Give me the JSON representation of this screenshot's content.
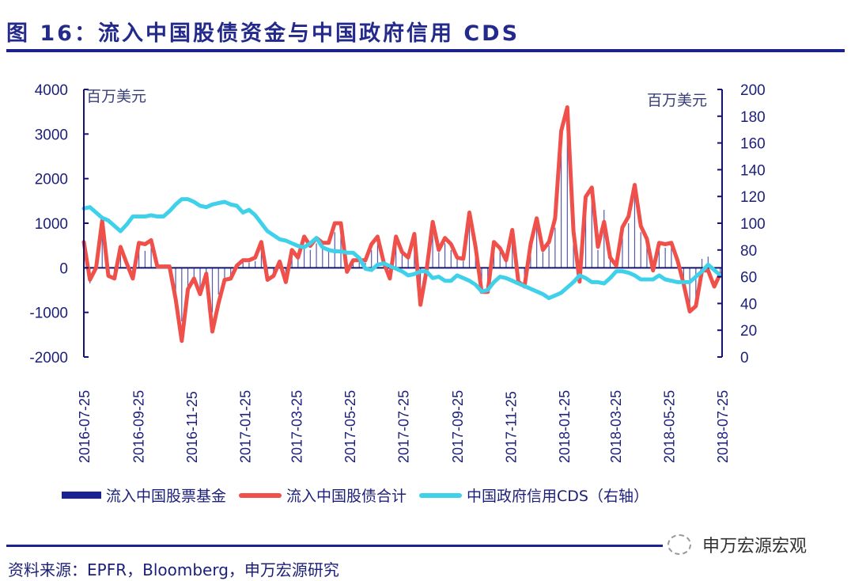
{
  "header": {
    "title": "图 16：流入中国股债资金与中国政府信用 CDS"
  },
  "footer": {
    "source": "资料来源：EPFR，Bloomberg，申万宏源研究",
    "watermark": "申万宏源宏观"
  },
  "colors": {
    "equity_bar": "#1c2290",
    "total_line": "#f0504a",
    "cds_line": "#3fd0ea",
    "axis": "#141470"
  },
  "chart_data": {
    "type": "bar+line",
    "left_axis": {
      "label": "百万美元",
      "range": [
        -2000,
        4000
      ],
      "ticks": [
        -2000,
        -1000,
        0,
        1000,
        2000,
        3000,
        4000
      ]
    },
    "right_axis": {
      "label": "百万美元",
      "range": [
        0,
        200
      ],
      "ticks": [
        0,
        20,
        40,
        60,
        80,
        100,
        120,
        140,
        160,
        180,
        200
      ]
    },
    "x_tick_labels": [
      "2016-07-25",
      "2016-09-25",
      "2016-11-25",
      "2017-01-25",
      "2017-03-25",
      "2017-05-25",
      "2017-07-25",
      "2017-09-25",
      "2017-11-25",
      "2018-01-25",
      "2018-03-25",
      "2018-05-25",
      "2018-07-25"
    ],
    "legend_position": "bottom",
    "grid": false,
    "x": [
      "2016-07-25",
      "2016-08-01",
      "2016-08-08",
      "2016-08-15",
      "2016-08-22",
      "2016-08-29",
      "2016-09-05",
      "2016-09-12",
      "2016-09-19",
      "2016-09-26",
      "2016-10-03",
      "2016-10-10",
      "2016-10-17",
      "2016-10-24",
      "2016-10-31",
      "2016-11-07",
      "2016-11-14",
      "2016-11-21",
      "2016-11-28",
      "2016-12-05",
      "2016-12-12",
      "2016-12-19",
      "2016-12-26",
      "2017-01-02",
      "2017-01-09",
      "2017-01-16",
      "2017-01-23",
      "2017-01-30",
      "2017-02-06",
      "2017-02-13",
      "2017-02-20",
      "2017-02-27",
      "2017-03-06",
      "2017-03-13",
      "2017-03-20",
      "2017-03-27",
      "2017-04-03",
      "2017-04-10",
      "2017-04-17",
      "2017-04-24",
      "2017-05-01",
      "2017-05-08",
      "2017-05-15",
      "2017-05-22",
      "2017-05-29",
      "2017-06-05",
      "2017-06-12",
      "2017-06-19",
      "2017-06-26",
      "2017-07-03",
      "2017-07-10",
      "2017-07-17",
      "2017-07-24",
      "2017-07-31",
      "2017-08-07",
      "2017-08-14",
      "2017-08-21",
      "2017-08-28",
      "2017-09-04",
      "2017-09-11",
      "2017-09-18",
      "2017-09-25",
      "2017-10-02",
      "2017-10-09",
      "2017-10-16",
      "2017-10-23",
      "2017-10-30",
      "2017-11-06",
      "2017-11-13",
      "2017-11-20",
      "2017-11-27",
      "2017-12-04",
      "2017-12-11",
      "2017-12-18",
      "2017-12-25",
      "2018-01-01",
      "2018-01-08",
      "2018-01-15",
      "2018-01-22",
      "2018-01-29",
      "2018-02-05",
      "2018-02-12",
      "2018-02-19",
      "2018-02-26",
      "2018-03-05",
      "2018-03-12",
      "2018-03-19",
      "2018-03-26",
      "2018-04-02",
      "2018-04-09",
      "2018-04-16",
      "2018-04-23",
      "2018-04-30",
      "2018-05-07",
      "2018-05-14",
      "2018-05-21",
      "2018-05-28",
      "2018-06-04",
      "2018-06-11",
      "2018-06-18",
      "2018-06-25",
      "2018-07-02",
      "2018-07-09",
      "2018-07-16",
      "2018-07-23"
    ],
    "series": [
      {
        "name": "流入中国股票基金",
        "type": "bar",
        "axis": "left",
        "values": [
          400,
          -350,
          0,
          900,
          -100,
          -150,
          300,
          80,
          -150,
          400,
          380,
          450,
          20,
          20,
          20,
          -600,
          -1200,
          -500,
          -300,
          -450,
          -150,
          -1000,
          -600,
          -250,
          -200,
          40,
          120,
          120,
          150,
          400,
          -150,
          -100,
          120,
          -200,
          350,
          200,
          500,
          400,
          550,
          450,
          450,
          800,
          800,
          -50,
          120,
          120,
          120,
          400,
          550,
          100,
          -150,
          550,
          300,
          200,
          600,
          -600,
          -50,
          850,
          350,
          550,
          400,
          200,
          150,
          1000,
          400,
          -400,
          -450,
          450,
          350,
          150,
          700,
          -250,
          -350,
          450,
          900,
          350,
          500,
          900,
          2800,
          3200,
          700,
          -250,
          1400,
          1500,
          400,
          1300,
          200,
          50,
          800,
          1000,
          1600,
          800,
          550,
          -50,
          600,
          450,
          500,
          150,
          -300,
          -900,
          -800,
          200,
          250,
          -100,
          -100
        ]
      },
      {
        "name": "流入中国股债合计",
        "type": "line",
        "axis": "left",
        "values": [
          580,
          -270,
          0,
          1060,
          -180,
          -240,
          470,
          100,
          -240,
          560,
          530,
          620,
          30,
          30,
          30,
          -700,
          -1640,
          -480,
          -240,
          -590,
          -130,
          -1430,
          -800,
          -270,
          -240,
          50,
          170,
          170,
          230,
          580,
          -270,
          -180,
          140,
          -320,
          400,
          230,
          700,
          490,
          670,
          560,
          560,
          1000,
          1000,
          -90,
          170,
          170,
          170,
          530,
          700,
          120,
          -240,
          700,
          350,
          230,
          760,
          -830,
          -60,
          1030,
          400,
          670,
          530,
          230,
          200,
          1240,
          470,
          -540,
          -540,
          580,
          440,
          170,
          850,
          -310,
          -420,
          530,
          1110,
          400,
          580,
          1110,
          3070,
          3600,
          820,
          -310,
          1590,
          1800,
          470,
          1030,
          230,
          50,
          910,
          1150,
          1860,
          940,
          650,
          -60,
          560,
          530,
          560,
          170,
          -360,
          -980,
          -860,
          -60,
          -60,
          -420,
          -130
        ]
      },
      {
        "name": "中国政府信用CDS（右轴）",
        "type": "line",
        "axis": "right",
        "values": [
          111,
          112,
          108,
          104,
          102,
          98,
          94,
          99,
          105,
          105,
          105,
          106,
          105,
          105,
          109,
          114,
          118,
          118,
          116,
          113,
          112,
          114,
          115,
          116,
          114,
          113,
          108,
          110,
          106,
          100,
          94,
          91,
          88,
          87,
          85,
          83,
          82,
          85,
          89,
          82,
          80,
          79,
          79,
          78,
          78,
          74,
          66,
          65,
          69,
          70,
          68,
          66,
          64,
          61,
          62,
          64,
          64,
          59,
          60,
          57,
          57,
          61,
          59,
          57,
          54,
          49,
          50,
          56,
          60,
          59,
          57,
          55,
          53,
          51,
          49,
          47,
          44,
          46,
          48,
          52,
          56,
          61,
          59,
          56,
          56,
          55,
          59,
          64,
          64,
          63,
          61,
          58,
          58,
          58,
          61,
          58,
          57,
          56,
          56,
          56,
          60,
          64,
          69,
          65,
          61
        ]
      }
    ]
  }
}
